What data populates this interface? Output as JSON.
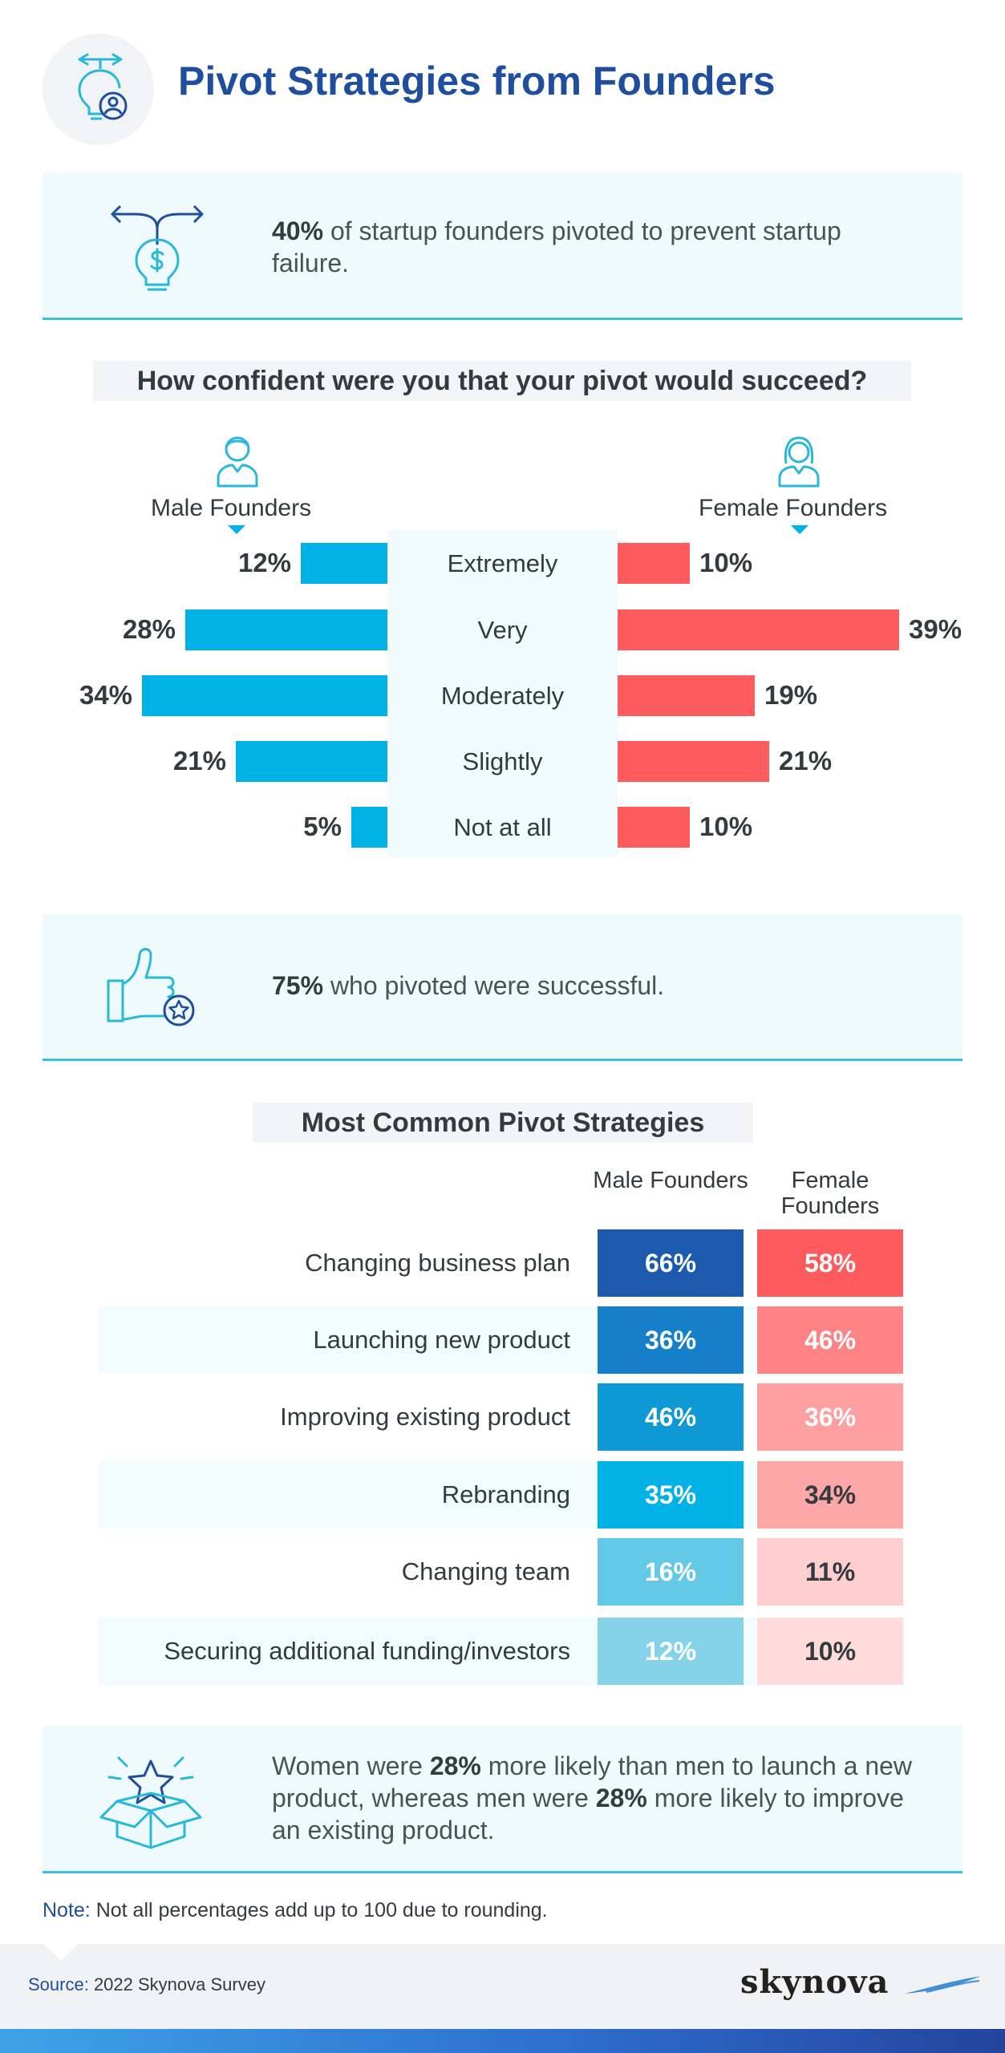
{
  "header": {
    "title": "Pivot Strategies from Founders",
    "icon": "lightbulb-person-icon"
  },
  "stat1": {
    "highlight": "40%",
    "text": " of startup founders pivoted to prevent startup failure.",
    "icon": "crossroad-lightbulb-dollar-icon"
  },
  "confidence": {
    "title": "How confident were you that your pivot would succeed?",
    "male_label": "Male Founders",
    "female_label": "Female Founders"
  },
  "stat2": {
    "highlight": "75%",
    "text": " who pivoted were successful.",
    "icon": "thumbs-up-star-icon"
  },
  "strategies": {
    "title": "Most Common Pivot Strategies",
    "col_male": "Male Founders",
    "col_female": "Female Founders"
  },
  "stat3": {
    "text_a": "Women were ",
    "highlight_a": "28%",
    "text_b": " more likely than men to launch a new product, whereas men were ",
    "highlight_b": "28%",
    "text_c": " more likely to improve an existing product.",
    "icon": "open-box-star-icon"
  },
  "footer": {
    "note_key": "Note:",
    "note_text": " Not all percentages add up to 100 due to rounding.",
    "source_key": "Source:",
    "source_text": " 2022 Skynova Survey",
    "logo": "skynova"
  },
  "colors": {
    "male": "#00b2e6",
    "female": "#fd5b5e",
    "title_blue": "#1f4e9c"
  },
  "chart_data": [
    {
      "type": "bar",
      "orientation": "horizontal-butterfly",
      "title": "How confident were you that your pivot would succeed?",
      "categories": [
        "Extremely",
        "Very",
        "Moderately",
        "Slightly",
        "Not at all"
      ],
      "series": [
        {
          "name": "Male Founders",
          "values": [
            12,
            28,
            34,
            21,
            5
          ],
          "labels": [
            "12%",
            "28%",
            "34%",
            "21%",
            "5%"
          ]
        },
        {
          "name": "Female Founders",
          "values": [
            10,
            39,
            19,
            21,
            10
          ],
          "labels": [
            "10%",
            "39%",
            "19%",
            "21%",
            "10%"
          ]
        }
      ],
      "unit": "%"
    },
    {
      "type": "table",
      "title": "Most Common Pivot Strategies",
      "categories": [
        "Changing business plan",
        "Launching new product",
        "Improving existing product",
        "Rebranding",
        "Changing team",
        "Securing additional funding/investors"
      ],
      "series": [
        {
          "name": "Male Founders",
          "values": [
            66,
            36,
            46,
            35,
            16,
            12
          ],
          "labels": [
            "66%",
            "36%",
            "46%",
            "35%",
            "16%",
            "12%"
          ],
          "colors": [
            "#1b5aac",
            "#1580c9",
            "#0e98d4",
            "#00b2e6",
            "#64c9e6",
            "#86d2e8"
          ]
        },
        {
          "name": "Female Founders",
          "values": [
            58,
            46,
            36,
            34,
            11,
            10
          ],
          "labels": [
            "58%",
            "46%",
            "36%",
            "34%",
            "11%",
            "10%"
          ],
          "colors": [
            "#fd5b5e",
            "#fd8385",
            "#fea0a2",
            "#fea7a8",
            "#ffcfd0",
            "#ffdbdc"
          ]
        }
      ],
      "unit": "%"
    }
  ]
}
